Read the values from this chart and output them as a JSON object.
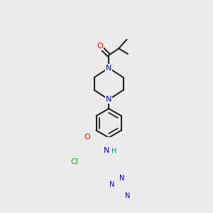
{
  "bg_color": "#ebebeb",
  "bond_color": "#1a1a1a",
  "line_width": 1.4,
  "atom_colors": {
    "O": "#ff0000",
    "N": "#0000cc",
    "Cl": "#228B22",
    "H": "#008b8b",
    "C": "#1a1a1a"
  },
  "figsize": [
    3.0,
    3.0
  ],
  "dpi": 100
}
